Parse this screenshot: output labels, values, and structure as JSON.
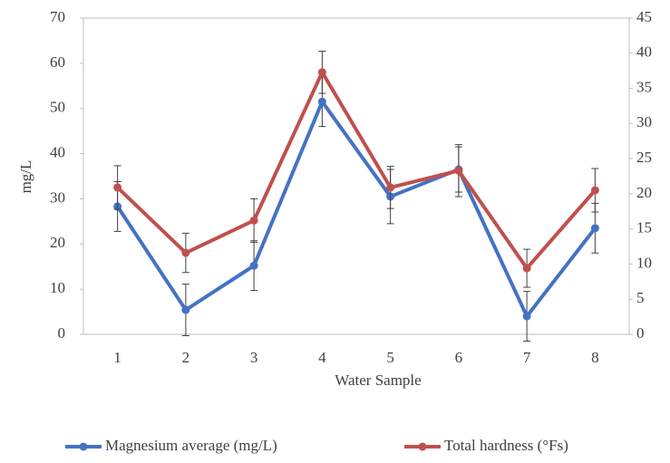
{
  "chart_data": {
    "type": "line",
    "x_label": "Water Sample",
    "y_label": "mg/L",
    "categories": [
      "1",
      "2",
      "3",
      "4",
      "5",
      "6",
      "7",
      "8"
    ],
    "ylim": [
      0,
      70
    ],
    "yticks": [
      0,
      10,
      20,
      30,
      40,
      50,
      60,
      70
    ],
    "y2lim": [
      0,
      45
    ],
    "y2ticks": [
      0,
      5,
      10,
      15,
      20,
      25,
      30,
      35,
      40,
      45
    ],
    "legend": "bottom",
    "series": [
      {
        "name": "Magnesium average (mg/L)",
        "color": "#4472c4",
        "values": [
          28.3,
          5.4,
          15.2,
          51.5,
          30.5,
          36.5,
          4,
          23.5
        ],
        "errors": [
          5.5,
          5.7,
          5.5,
          5.5,
          6,
          5,
          5.5,
          5.5
        ]
      },
      {
        "name": "Total hardness (°Fs)",
        "color": "#c0504d",
        "axis": "y2",
        "values": [
          20.9,
          11.6,
          16.2,
          37.3,
          20.9,
          23.3,
          9.4,
          20.5
        ],
        "errors": [
          3.1,
          2.8,
          3.1,
          3,
          3,
          3.7,
          2.7,
          3.1
        ]
      }
    ]
  }
}
